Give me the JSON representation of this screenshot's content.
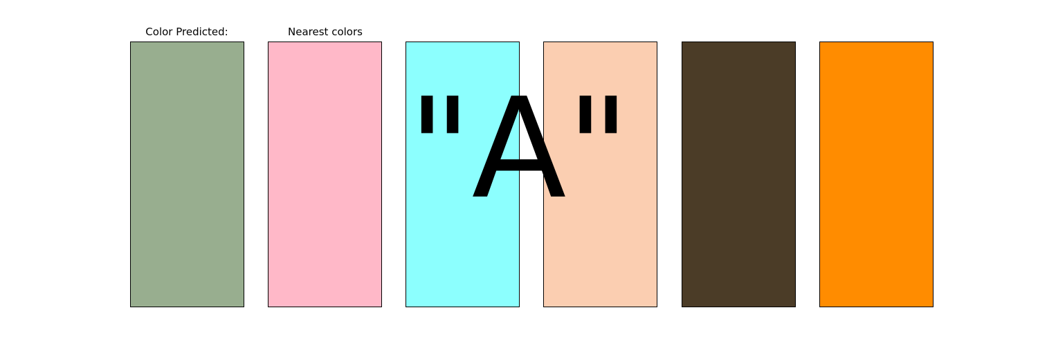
{
  "labels": {
    "predicted": "Color Predicted:",
    "nearest": "Nearest colors"
  },
  "overlay": {
    "text": "\"A\""
  },
  "swatches": [
    {
      "role": "predicted",
      "color": "#98AE8F"
    },
    {
      "role": "nearest",
      "color": "#FFB8C8"
    },
    {
      "role": "nearest",
      "color": "#8CFFFE"
    },
    {
      "role": "nearest",
      "color": "#FBCEB1"
    },
    {
      "role": "nearest",
      "color": "#4B3C27"
    },
    {
      "role": "nearest",
      "color": "#FF8C00"
    }
  ]
}
